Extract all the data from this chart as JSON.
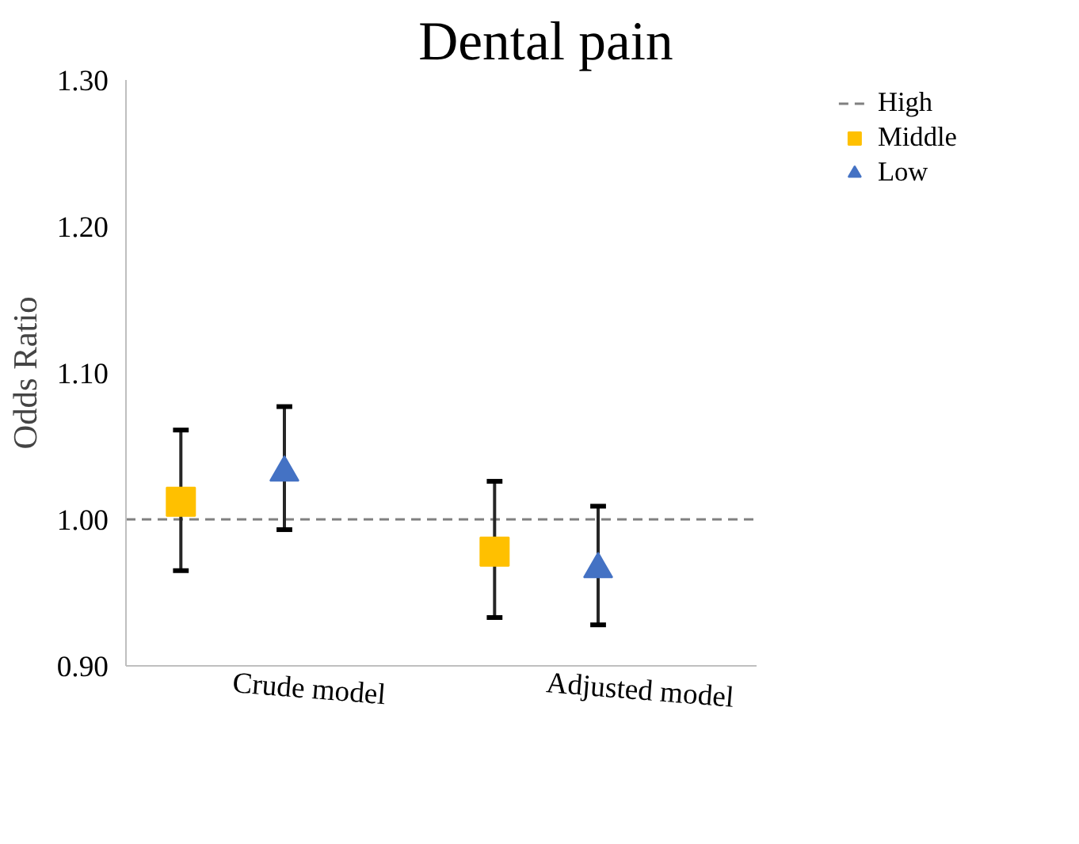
{
  "chart_data": {
    "type": "scatter",
    "title": "Dental pain",
    "ylabel": "Odds Ratio",
    "categories": [
      "Crude model",
      "Adjusted model"
    ],
    "series": [
      {
        "name": "Middle",
        "color": "#ffc000",
        "marker": "square",
        "values": [
          1.012,
          0.978
        ],
        "errors": [
          [
            0.965,
            1.061
          ],
          [
            0.933,
            1.026
          ]
        ]
      },
      {
        "name": "Low",
        "color": "#4472c4",
        "marker": "triangle",
        "values": [
          1.032,
          0.966
        ],
        "errors": [
          [
            0.993,
            1.077
          ],
          [
            0.928,
            1.009
          ]
        ]
      }
    ],
    "ref_lines": [
      {
        "axis": "y",
        "value": 1.0,
        "label": "High",
        "color": "#808080",
        "line_style": "dashed"
      }
    ],
    "ylim": [
      0.9,
      1.3
    ],
    "yticks": [
      {
        "value": 0.9,
        "label": "0.90"
      },
      {
        "value": 1.0,
        "label": "1.00"
      },
      {
        "value": 1.1,
        "label": "1.10"
      },
      {
        "value": 1.2,
        "label": "1.20"
      },
      {
        "value": 1.3,
        "label": "1.30"
      }
    ],
    "grid": false,
    "legend": "top right"
  }
}
